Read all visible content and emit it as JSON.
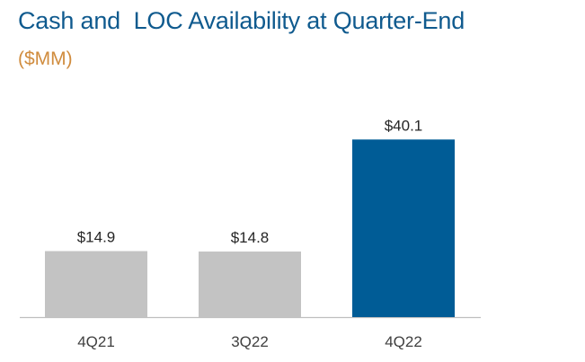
{
  "chart_data": {
    "type": "bar",
    "title": "Cash and  LOC Availability at Quarter-End",
    "subtitle": "($MM)",
    "categories": [
      "4Q21",
      "3Q22",
      "4Q22"
    ],
    "values": [
      14.9,
      14.8,
      40.1
    ],
    "data_labels": [
      "$14.9",
      "$14.8",
      "$40.1"
    ],
    "bar_colors": [
      "#c3c3c3",
      "#c3c3c3",
      "#005c96"
    ],
    "ylim": [
      0,
      50
    ],
    "grid": false,
    "legend": "none"
  }
}
